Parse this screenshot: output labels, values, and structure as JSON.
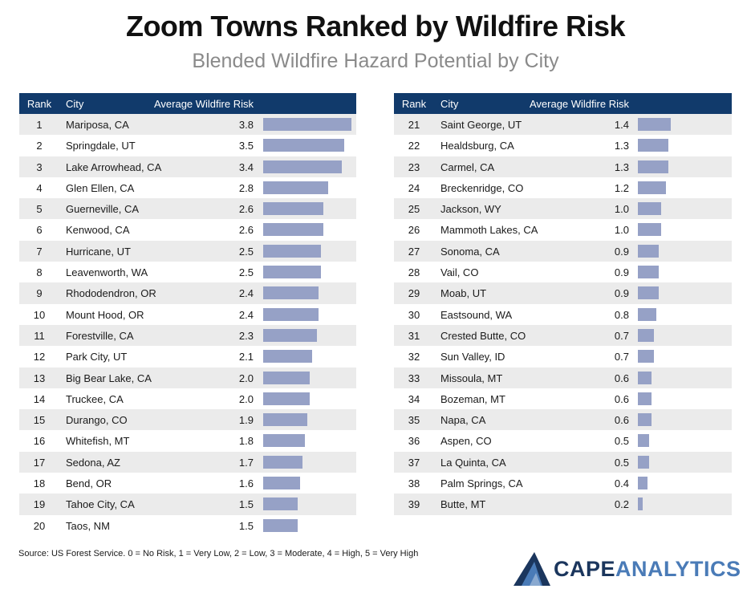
{
  "title": "Zoom Towns Ranked by Wildfire Risk",
  "subtitle": "Blended Wildfire Hazard Potential by City",
  "headers": {
    "rank": "Rank",
    "city": "City",
    "value": "Average Wildfire Risk"
  },
  "source": "Source: US Forest Service. 0 = No Risk, 1 = Very Low, 2 = Low, 3 = Moderate, 4 = High, 5 = Very High",
  "logo": {
    "cape": "CAPE",
    "analytics": "ANALYTICS"
  },
  "colors": {
    "header_bg": "#113a6b",
    "bar": "#96a1c6",
    "row_shade": "#ebebeb"
  },
  "chart_data": {
    "type": "table",
    "title": "Zoom Towns Ranked by Wildfire Risk",
    "subtitle": "Blended Wildfire Hazard Potential by City",
    "value_label": "Average Wildfire Risk",
    "left": [
      {
        "rank": "1",
        "city": "Mariposa, CA",
        "value": "3.8"
      },
      {
        "rank": "2",
        "city": "Springdale, UT",
        "value": "3.5"
      },
      {
        "rank": "3",
        "city": "Lake Arrowhead, CA",
        "value": "3.4"
      },
      {
        "rank": "4",
        "city": "Glen Ellen, CA",
        "value": "2.8"
      },
      {
        "rank": "5",
        "city": "Guerneville, CA",
        "value": "2.6"
      },
      {
        "rank": "6",
        "city": "Kenwood, CA",
        "value": "2.6"
      },
      {
        "rank": "7",
        "city": "Hurricane, UT",
        "value": "2.5"
      },
      {
        "rank": "8",
        "city": "Leavenworth, WA",
        "value": "2.5"
      },
      {
        "rank": "9",
        "city": "Rhododendron, OR",
        "value": "2.4"
      },
      {
        "rank": "10",
        "city": "Mount Hood, OR",
        "value": "2.4"
      },
      {
        "rank": "11",
        "city": "Forestville, CA",
        "value": "2.3"
      },
      {
        "rank": "12",
        "city": "Park City, UT",
        "value": "2.1"
      },
      {
        "rank": "13",
        "city": "Big Bear Lake, CA",
        "value": "2.0"
      },
      {
        "rank": "14",
        "city": "Truckee, CA",
        "value": "2.0"
      },
      {
        "rank": "15",
        "city": "Durango, CO",
        "value": "1.9"
      },
      {
        "rank": "16",
        "city": "Whitefish, MT",
        "value": "1.8"
      },
      {
        "rank": "17",
        "city": "Sedona, AZ",
        "value": "1.7"
      },
      {
        "rank": "18",
        "city": "Bend, OR",
        "value": "1.6"
      },
      {
        "rank": "19",
        "city": "Tahoe City, CA",
        "value": "1.5"
      },
      {
        "rank": "20",
        "city": "Taos, NM",
        "value": "1.5"
      }
    ],
    "right": [
      {
        "rank": "21",
        "city": "Saint George, UT",
        "value": "1.4"
      },
      {
        "rank": "22",
        "city": "Healdsburg, CA",
        "value": "1.3"
      },
      {
        "rank": "23",
        "city": "Carmel, CA",
        "value": "1.3"
      },
      {
        "rank": "24",
        "city": "Breckenridge, CO",
        "value": "1.2"
      },
      {
        "rank": "25",
        "city": "Jackson, WY",
        "value": "1.0"
      },
      {
        "rank": "26",
        "city": "Mammoth Lakes, CA",
        "value": "1.0"
      },
      {
        "rank": "27",
        "city": "Sonoma, CA",
        "value": "0.9"
      },
      {
        "rank": "28",
        "city": "Vail, CO",
        "value": "0.9"
      },
      {
        "rank": "29",
        "city": "Moab, UT",
        "value": "0.9"
      },
      {
        "rank": "30",
        "city": "Eastsound, WA",
        "value": "0.8"
      },
      {
        "rank": "31",
        "city": "Crested Butte, CO",
        "value": "0.7"
      },
      {
        "rank": "32",
        "city": "Sun Valley, ID",
        "value": "0.7"
      },
      {
        "rank": "33",
        "city": "Missoula, MT",
        "value": "0.6"
      },
      {
        "rank": "34",
        "city": "Bozeman, MT",
        "value": "0.6"
      },
      {
        "rank": "35",
        "city": "Napa, CA",
        "value": "0.6"
      },
      {
        "rank": "36",
        "city": "Aspen, CO",
        "value": "0.5"
      },
      {
        "rank": "37",
        "city": "La Quinta, CA",
        "value": "0.5"
      },
      {
        "rank": "38",
        "city": "Palm Springs, CA",
        "value": "0.4"
      },
      {
        "rank": "39",
        "city": "Butte, MT",
        "value": "0.2"
      }
    ],
    "bar_scale_max": 3.8
  }
}
